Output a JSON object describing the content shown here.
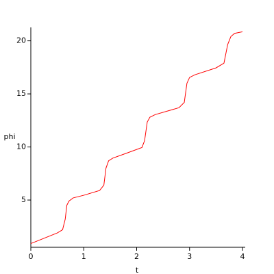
{
  "chart_data": {
    "type": "line",
    "xlabel": "t",
    "ylabel": "phi",
    "x": [
      0,
      0.5,
      0.6,
      0.65,
      0.68,
      0.72,
      0.8,
      1.0,
      1.3,
      1.38,
      1.42,
      1.47,
      1.55,
      1.8,
      2.1,
      2.15,
      2.2,
      2.25,
      2.35,
      2.8,
      2.9,
      2.95,
      3.0,
      3.1,
      3.5,
      3.65,
      3.72,
      3.78,
      3.85,
      4.0
    ],
    "series": [
      {
        "name": "phi",
        "color": "#ff0000",
        "values": [
          0.9,
          1.9,
          2.2,
          3.2,
          4.5,
          4.9,
          5.2,
          5.45,
          5.9,
          6.4,
          8.0,
          8.7,
          8.95,
          9.4,
          9.95,
          10.6,
          12.35,
          12.8,
          13.05,
          13.7,
          14.2,
          16.0,
          16.55,
          16.8,
          17.45,
          17.9,
          19.65,
          20.4,
          20.7,
          20.85
        ]
      }
    ],
    "xlim": [
      0,
      4
    ],
    "ylim": [
      0.55,
      21.2
    ],
    "xticks": [
      0,
      1,
      2,
      3,
      4
    ],
    "yticks": [
      5,
      10,
      15,
      20
    ]
  }
}
